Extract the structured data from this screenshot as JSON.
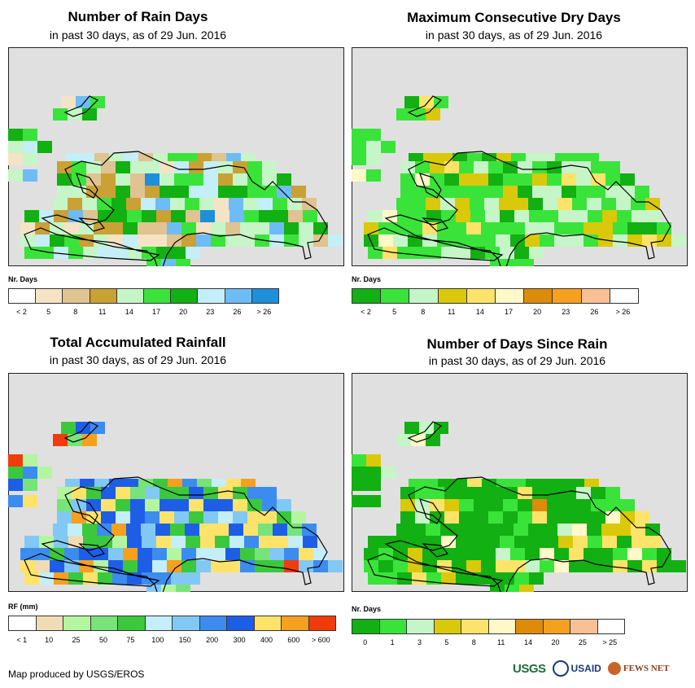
{
  "panels": [
    {
      "title": "Number of Rain Days",
      "subtitle": "in past 30 days, as of 29 Jun. 2016",
      "legend_title": "Nr. Days",
      "legend_colors": [
        "#ffffff",
        "#f5e3c6",
        "#dfc391",
        "#c9a135",
        "#c6f5c8",
        "#3ae33a",
        "#12b012",
        "#c4eef8",
        "#6ebcf5",
        "#1e8fd8"
      ],
      "legend_labels": [
        "< 2",
        "5",
        "8",
        "11",
        "14",
        "17",
        "20",
        "23",
        "26",
        "> 26"
      ]
    },
    {
      "title": "Maximum Consecutive Dry Days",
      "subtitle": "in past 30 days, as of 29 Jun. 2016",
      "legend_title": "Nr. Days",
      "legend_colors": [
        "#12b012",
        "#3ae33a",
        "#c6f5c8",
        "#d9c90a",
        "#fde36a",
        "#fff8c8",
        "#dc8c0a",
        "#f5a01e",
        "#f9c094",
        "#ffffff"
      ],
      "legend_labels": [
        "< 2",
        "5",
        "8",
        "11",
        "14",
        "17",
        "20",
        "23",
        "26",
        "> 26"
      ]
    },
    {
      "title": "Total Accumulated Rainfall",
      "subtitle": "in past 30 days, as of 29 Jun. 2016",
      "legend_title": "RF (mm)",
      "legend_colors": [
        "#ffffff",
        "#f0dcb4",
        "#b4f5a0",
        "#78e378",
        "#3cc83c",
        "#c4eef8",
        "#82c8f5",
        "#3c8cf0",
        "#1e5ee6",
        "#fde36a",
        "#f5a01e",
        "#f03c0a"
      ],
      "legend_labels": [
        "< 1",
        "10",
        "25",
        "50",
        "75",
        "100",
        "150",
        "200",
        "300",
        "400",
        "600",
        "> 600"
      ]
    },
    {
      "title": "Number of Days Since Rain",
      "subtitle": "in past 30 days, as of 29 Jun. 2016",
      "legend_title": "Nr. Days",
      "legend_colors": [
        "#12b012",
        "#3ae33a",
        "#c6f5c8",
        "#d9c90a",
        "#fde36a",
        "#fff8c8",
        "#dc8c0a",
        "#f5a01e",
        "#f9c094",
        "#ffffff"
      ],
      "legend_labels": [
        "0",
        "1",
        "3",
        "5",
        "8",
        "11",
        "14",
        "20",
        "25",
        "> 25"
      ]
    }
  ],
  "footer": {
    "credit": "Map produced by USGS/EROS",
    "logos": [
      "USGS",
      "USAID",
      "FEWS NET"
    ]
  }
}
